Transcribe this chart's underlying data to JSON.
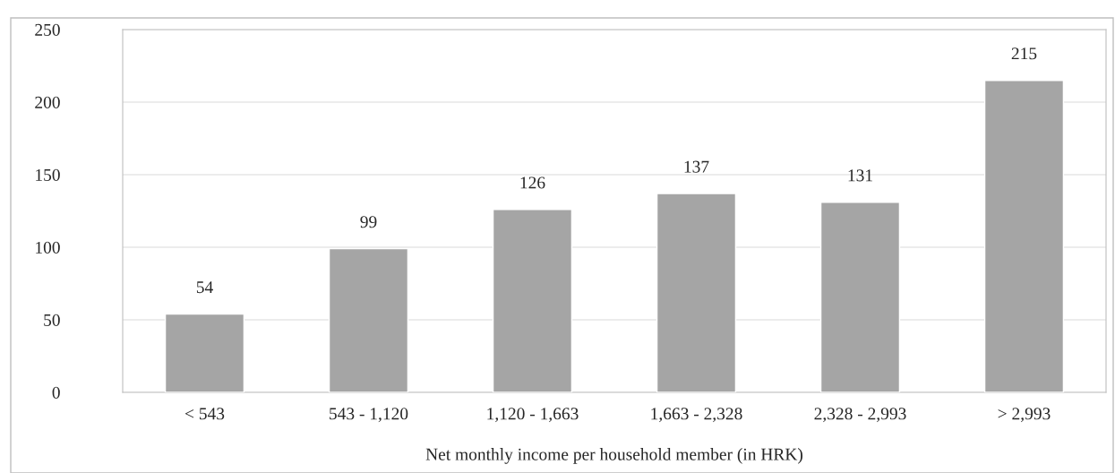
{
  "chart_data": {
    "type": "bar",
    "xlabel": "Net monthly income per household member (in HRK)",
    "categories": [
      "< 543",
      "543 - 1,120",
      "1,120 - 1,663",
      "1,663 - 2,328",
      "2,328 - 2,993",
      "> 2,993"
    ],
    "values": [
      54,
      99,
      126,
      137,
      131,
      215
    ],
    "color": "#a5a5a5",
    "ylim": [
      0,
      250
    ],
    "yticks": [
      0,
      50,
      100,
      150,
      200,
      250
    ],
    "grid": "y",
    "data_labels": true
  }
}
